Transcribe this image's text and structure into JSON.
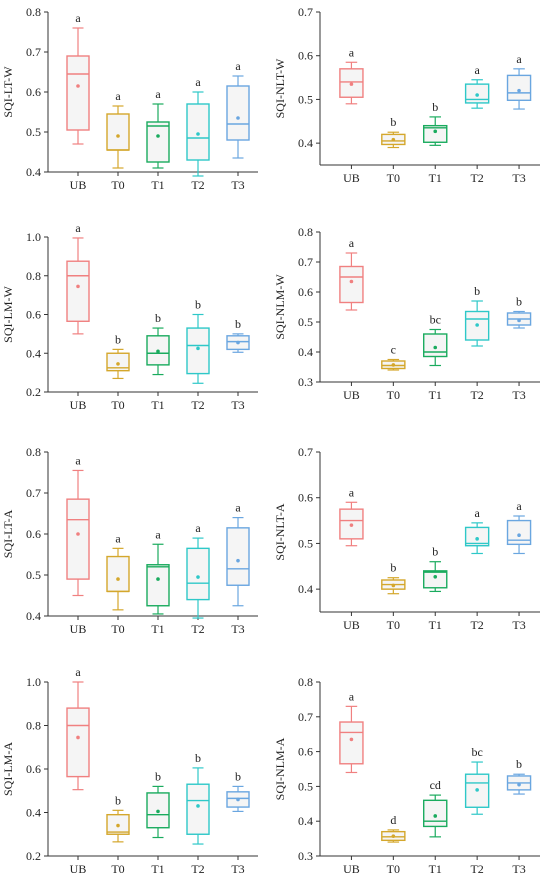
{
  "chart_data": [
    {
      "type": "box",
      "ylabel": "SQI-LT-W",
      "categories": [
        "UB",
        "T0",
        "T1",
        "T2",
        "T3"
      ],
      "ylim": [
        0.4,
        0.8
      ],
      "yticks": [
        "0.4",
        "0.5",
        "0.6",
        "0.7",
        "0.8"
      ],
      "boxes": [
        {
          "category": "UB",
          "min": 0.47,
          "q1": 0.505,
          "median": 0.645,
          "q3": 0.69,
          "max": 0.76,
          "mean": 0.615,
          "label": "a"
        },
        {
          "category": "T0",
          "min": 0.41,
          "q1": 0.455,
          "median": 0.455,
          "q3": 0.545,
          "max": 0.565,
          "mean": 0.49,
          "label": "a"
        },
        {
          "category": "T1",
          "min": 0.41,
          "q1": 0.425,
          "median": 0.515,
          "q3": 0.525,
          "max": 0.57,
          "mean": 0.49,
          "label": "a"
        },
        {
          "category": "T2",
          "min": 0.39,
          "q1": 0.43,
          "median": 0.485,
          "q3": 0.57,
          "max": 0.6,
          "mean": 0.495,
          "label": "a"
        },
        {
          "category": "T3",
          "min": 0.435,
          "q1": 0.48,
          "median": 0.52,
          "q3": 0.615,
          "max": 0.64,
          "mean": 0.535,
          "label": "a"
        }
      ]
    },
    {
      "type": "box",
      "ylabel": "SQI-NLT-W",
      "categories": [
        "UB",
        "T0",
        "T1",
        "T2",
        "T3"
      ],
      "ylim": [
        0.35,
        0.7
      ],
      "yticks": [
        "0.4",
        "0.5",
        "0.6",
        "0.7"
      ],
      "boxes": [
        {
          "category": "UB",
          "min": 0.49,
          "q1": 0.505,
          "median": 0.54,
          "q3": 0.57,
          "max": 0.585,
          "mean": 0.535,
          "label": "a"
        },
        {
          "category": "T0",
          "min": 0.39,
          "q1": 0.397,
          "median": 0.405,
          "q3": 0.42,
          "max": 0.425,
          "mean": 0.408,
          "label": "b"
        },
        {
          "category": "T1",
          "min": 0.395,
          "q1": 0.402,
          "median": 0.435,
          "q3": 0.44,
          "max": 0.46,
          "mean": 0.427,
          "label": "b"
        },
        {
          "category": "T2",
          "min": 0.48,
          "q1": 0.492,
          "median": 0.5,
          "q3": 0.535,
          "max": 0.545,
          "mean": 0.51,
          "label": "a"
        },
        {
          "category": "T3",
          "min": 0.478,
          "q1": 0.498,
          "median": 0.515,
          "q3": 0.555,
          "max": 0.57,
          "mean": 0.52,
          "label": "a"
        }
      ]
    },
    {
      "type": "box",
      "ylabel": "SQI-LM-W",
      "categories": [
        "UB",
        "T0",
        "T1",
        "T2",
        "T3"
      ],
      "ylim": [
        0.2,
        1.0
      ],
      "yticks": [
        "0.2",
        "0.4",
        "0.6",
        "0.8",
        "1.0"
      ],
      "boxes": [
        {
          "category": "UB",
          "min": 0.5,
          "q1": 0.565,
          "median": 0.8,
          "q3": 0.875,
          "max": 0.995,
          "mean": 0.745,
          "label": "a"
        },
        {
          "category": "T0",
          "min": 0.27,
          "q1": 0.31,
          "median": 0.325,
          "q3": 0.4,
          "max": 0.42,
          "mean": 0.345,
          "label": "b"
        },
        {
          "category": "T1",
          "min": 0.29,
          "q1": 0.34,
          "median": 0.4,
          "q3": 0.49,
          "max": 0.53,
          "mean": 0.41,
          "label": "b"
        },
        {
          "category": "T2",
          "min": 0.245,
          "q1": 0.295,
          "median": 0.44,
          "q3": 0.53,
          "max": 0.6,
          "mean": 0.425,
          "label": "b"
        },
        {
          "category": "T3",
          "min": 0.405,
          "q1": 0.42,
          "median": 0.46,
          "q3": 0.49,
          "max": 0.5,
          "mean": 0.455,
          "label": "b"
        }
      ]
    },
    {
      "type": "box",
      "ylabel": "SQI-NLM-W",
      "categories": [
        "UB",
        "T0",
        "T1",
        "T2",
        "T3"
      ],
      "ylim": [
        0.3,
        0.8
      ],
      "yticks": [
        "0.3",
        "0.4",
        "0.5",
        "0.6",
        "0.7",
        "0.8"
      ],
      "boxes": [
        {
          "category": "UB",
          "min": 0.54,
          "q1": 0.565,
          "median": 0.65,
          "q3": 0.685,
          "max": 0.73,
          "mean": 0.635,
          "label": "a"
        },
        {
          "category": "T0",
          "min": 0.34,
          "q1": 0.345,
          "median": 0.355,
          "q3": 0.37,
          "max": 0.375,
          "mean": 0.357,
          "label": "c"
        },
        {
          "category": "T1",
          "min": 0.355,
          "q1": 0.385,
          "median": 0.4,
          "q3": 0.46,
          "max": 0.475,
          "mean": 0.415,
          "label": "bc"
        },
        {
          "category": "T2",
          "min": 0.42,
          "q1": 0.44,
          "median": 0.51,
          "q3": 0.535,
          "max": 0.57,
          "mean": 0.49,
          "label": "b"
        },
        {
          "category": "T3",
          "min": 0.48,
          "q1": 0.49,
          "median": 0.51,
          "q3": 0.53,
          "max": 0.535,
          "mean": 0.505,
          "label": "b"
        }
      ]
    },
    {
      "type": "box",
      "ylabel": "SQI-LT-A",
      "categories": [
        "UB",
        "T0",
        "T1",
        "T2",
        "T3"
      ],
      "ylim": [
        0.4,
        0.8
      ],
      "yticks": [
        "0.4",
        "0.5",
        "0.6",
        "0.7",
        "0.8"
      ],
      "boxes": [
        {
          "category": "UB",
          "min": 0.45,
          "q1": 0.49,
          "median": 0.635,
          "q3": 0.685,
          "max": 0.755,
          "mean": 0.6,
          "label": "a"
        },
        {
          "category": "T0",
          "min": 0.415,
          "q1": 0.46,
          "median": 0.46,
          "q3": 0.545,
          "max": 0.565,
          "mean": 0.49,
          "label": "a"
        },
        {
          "category": "T1",
          "min": 0.405,
          "q1": 0.425,
          "median": 0.52,
          "q3": 0.525,
          "max": 0.575,
          "mean": 0.49,
          "label": "a"
        },
        {
          "category": "T2",
          "min": 0.395,
          "q1": 0.44,
          "median": 0.48,
          "q3": 0.565,
          "max": 0.59,
          "mean": 0.495,
          "label": "a"
        },
        {
          "category": "T3",
          "min": 0.425,
          "q1": 0.475,
          "median": 0.515,
          "q3": 0.615,
          "max": 0.64,
          "mean": 0.535,
          "label": "a"
        }
      ]
    },
    {
      "type": "box",
      "ylabel": "SQI-NLT-A",
      "categories": [
        "UB",
        "T0",
        "T1",
        "T2",
        "T3"
      ],
      "ylim": [
        0.35,
        0.7
      ],
      "yticks": [
        "0.4",
        "0.5",
        "0.6",
        "0.7"
      ],
      "boxes": [
        {
          "category": "UB",
          "min": 0.495,
          "q1": 0.51,
          "median": 0.55,
          "q3": 0.575,
          "max": 0.59,
          "mean": 0.54,
          "label": "a"
        },
        {
          "category": "T0",
          "min": 0.39,
          "q1": 0.4,
          "median": 0.41,
          "q3": 0.42,
          "max": 0.425,
          "mean": 0.408,
          "label": "b"
        },
        {
          "category": "T1",
          "min": 0.395,
          "q1": 0.403,
          "median": 0.437,
          "q3": 0.44,
          "max": 0.46,
          "mean": 0.427,
          "label": "b"
        },
        {
          "category": "T2",
          "min": 0.478,
          "q1": 0.495,
          "median": 0.5,
          "q3": 0.535,
          "max": 0.545,
          "mean": 0.51,
          "label": "a"
        },
        {
          "category": "T3",
          "min": 0.478,
          "q1": 0.498,
          "median": 0.507,
          "q3": 0.55,
          "max": 0.56,
          "mean": 0.518,
          "label": "a"
        }
      ]
    },
    {
      "type": "box",
      "ylabel": "SQI-LM-A",
      "categories": [
        "UB",
        "T0",
        "T1",
        "T2",
        "T3"
      ],
      "ylim": [
        0.2,
        1.0
      ],
      "yticks": [
        "0.2",
        "0.4",
        "0.6",
        "0.8",
        "1.0"
      ],
      "boxes": [
        {
          "category": "UB",
          "min": 0.505,
          "q1": 0.565,
          "median": 0.8,
          "q3": 0.88,
          "max": 1.0,
          "mean": 0.745,
          "label": "a"
        },
        {
          "category": "T0",
          "min": 0.265,
          "q1": 0.3,
          "median": 0.31,
          "q3": 0.39,
          "max": 0.41,
          "mean": 0.34,
          "label": "b"
        },
        {
          "category": "T1",
          "min": 0.285,
          "q1": 0.33,
          "median": 0.39,
          "q3": 0.49,
          "max": 0.52,
          "mean": 0.405,
          "label": "b"
        },
        {
          "category": "T2",
          "min": 0.255,
          "q1": 0.3,
          "median": 0.455,
          "q3": 0.53,
          "max": 0.605,
          "mean": 0.43,
          "label": "b"
        },
        {
          "category": "T3",
          "min": 0.405,
          "q1": 0.425,
          "median": 0.465,
          "q3": 0.495,
          "max": 0.52,
          "mean": 0.46,
          "label": "b"
        }
      ]
    },
    {
      "type": "box",
      "ylabel": "SQI-NLM-A",
      "categories": [
        "UB",
        "T0",
        "T1",
        "T2",
        "T3"
      ],
      "ylim": [
        0.3,
        0.8
      ],
      "yticks": [
        "0.3",
        "0.4",
        "0.5",
        "0.6",
        "0.7",
        "0.8"
      ],
      "boxes": [
        {
          "category": "UB",
          "min": 0.54,
          "q1": 0.565,
          "median": 0.655,
          "q3": 0.685,
          "max": 0.73,
          "mean": 0.635,
          "label": "a"
        },
        {
          "category": "T0",
          "min": 0.34,
          "q1": 0.345,
          "median": 0.355,
          "q3": 0.37,
          "max": 0.375,
          "mean": 0.357,
          "label": "d"
        },
        {
          "category": "T1",
          "min": 0.355,
          "q1": 0.385,
          "median": 0.4,
          "q3": 0.46,
          "max": 0.475,
          "mean": 0.415,
          "label": "cd"
        },
        {
          "category": "T2",
          "min": 0.42,
          "q1": 0.44,
          "median": 0.51,
          "q3": 0.535,
          "max": 0.57,
          "mean": 0.49,
          "label": "bc"
        },
        {
          "category": "T3",
          "min": 0.478,
          "q1": 0.49,
          "median": 0.51,
          "q3": 0.53,
          "max": 0.535,
          "mean": 0.505,
          "label": "b"
        }
      ]
    }
  ],
  "colors": {
    "UB": "#f08080",
    "T0": "#d4a72c",
    "T1": "#1aab5e",
    "T2": "#2ec8c8",
    "T3": "#6aa6e0",
    "box_fill": "#f5f5f5"
  }
}
